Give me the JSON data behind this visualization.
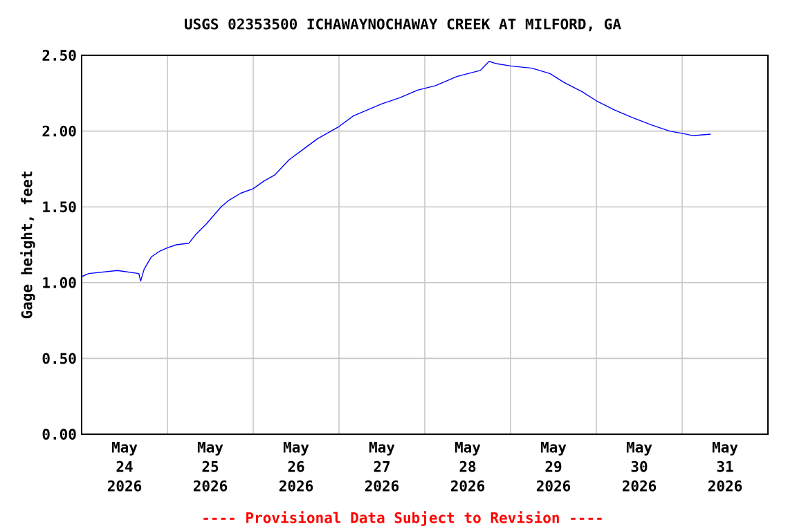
{
  "chart_data": {
    "type": "line",
    "title": "USGS 02353500 ICHAWAYNOCHAWAY CREEK AT MILFORD, GA",
    "ylabel": "Gage height, feet",
    "annotations": [
      "---- Provisional Data Subject to Revision ----"
    ],
    "x": [
      "2026-05-24T00:00",
      "2026-05-24T02:00",
      "2026-05-24T10:00",
      "2026-05-24T16:00",
      "2026-05-24T16:30",
      "2026-05-24T17:30",
      "2026-05-24T19:30",
      "2026-05-24T22:00",
      "2026-05-25T00:00",
      "2026-05-25T02:30",
      "2026-05-25T06:00",
      "2026-05-25T08:00",
      "2026-05-25T11:00",
      "2026-05-25T15:00",
      "2026-05-25T17:00",
      "2026-05-25T20:30",
      "2026-05-26T00:00",
      "2026-05-26T03:00",
      "2026-05-26T06:00",
      "2026-05-26T10:00",
      "2026-05-26T14:00",
      "2026-05-26T18:00",
      "2026-05-27T00:00",
      "2026-05-27T04:00",
      "2026-05-27T08:00",
      "2026-05-27T12:00",
      "2026-05-27T17:00",
      "2026-05-27T22:00",
      "2026-05-28T03:00",
      "2026-05-28T09:00",
      "2026-05-28T15:30",
      "2026-05-28T18:00",
      "2026-05-28T20:00",
      "2026-05-29T00:00",
      "2026-05-29T06:00",
      "2026-05-29T11:00",
      "2026-05-29T15:00",
      "2026-05-29T20:00",
      "2026-05-30T00:00",
      "2026-05-30T05:00",
      "2026-05-30T10:00",
      "2026-05-30T15:30",
      "2026-05-30T20:30",
      "2026-05-31T00:00",
      "2026-05-31T03:00",
      "2026-05-31T08:00"
    ],
    "series": [
      {
        "color": "#0000ff",
        "values": [
          1.04,
          1.06,
          1.08,
          1.06,
          1.01,
          1.09,
          1.17,
          1.21,
          1.23,
          1.25,
          1.26,
          1.32,
          1.39,
          1.5,
          1.54,
          1.59,
          1.62,
          1.67,
          1.71,
          1.81,
          1.88,
          1.95,
          2.03,
          2.1,
          2.14,
          2.18,
          2.22,
          2.27,
          2.3,
          2.36,
          2.4,
          2.46,
          2.445,
          2.43,
          2.415,
          2.38,
          2.32,
          2.26,
          2.2,
          2.14,
          2.09,
          2.04,
          2.0,
          1.985,
          1.97,
          1.98
        ]
      }
    ],
    "xlim": [
      "2026-05-24T00:00",
      "2026-06-01T00:00"
    ],
    "xticks": [
      {
        "value": "2026-05-24T00:00",
        "label": null
      },
      {
        "value": "2026-05-25T00:00",
        "label": null
      },
      {
        "value": "2026-05-26T00:00",
        "label": null
      },
      {
        "value": "2026-05-27T00:00",
        "label": null
      },
      {
        "value": "2026-05-28T00:00",
        "label": null
      },
      {
        "value": "2026-05-29T00:00",
        "label": null
      },
      {
        "value": "2026-05-30T00:00",
        "label": null
      },
      {
        "value": "2026-05-31T00:00",
        "label": null
      },
      {
        "value": "2026-06-01T00:00",
        "label": null
      },
      {
        "value": "2026-05-24T12:00",
        "label": "May 24 2026"
      },
      {
        "value": "2026-05-25T12:00",
        "label": "May 25 2026"
      },
      {
        "value": "2026-05-26T12:00",
        "label": "May 26 2026"
      },
      {
        "value": "2026-05-27T12:00",
        "label": "May 27 2026"
      },
      {
        "value": "2026-05-28T12:00",
        "label": "May 28 2026"
      },
      {
        "value": "2026-05-29T12:00",
        "label": "May 29 2026"
      },
      {
        "value": "2026-05-30T12:00",
        "label": "May 30 2026"
      },
      {
        "value": "2026-05-31T12:00",
        "label": "May 31 2026"
      }
    ],
    "ylim": [
      0,
      2.5
    ],
    "yticks": [
      {
        "value": 0,
        "label": "0.00"
      },
      {
        "value": 0.5,
        "label": "0.50"
      },
      {
        "value": 1.0,
        "label": "1.00"
      },
      {
        "value": 1.5,
        "label": "1.50"
      },
      {
        "value": 2.0,
        "label": "2.00"
      },
      {
        "value": 2.5,
        "label": "2.50"
      }
    ],
    "grid": true,
    "marker": "none"
  }
}
